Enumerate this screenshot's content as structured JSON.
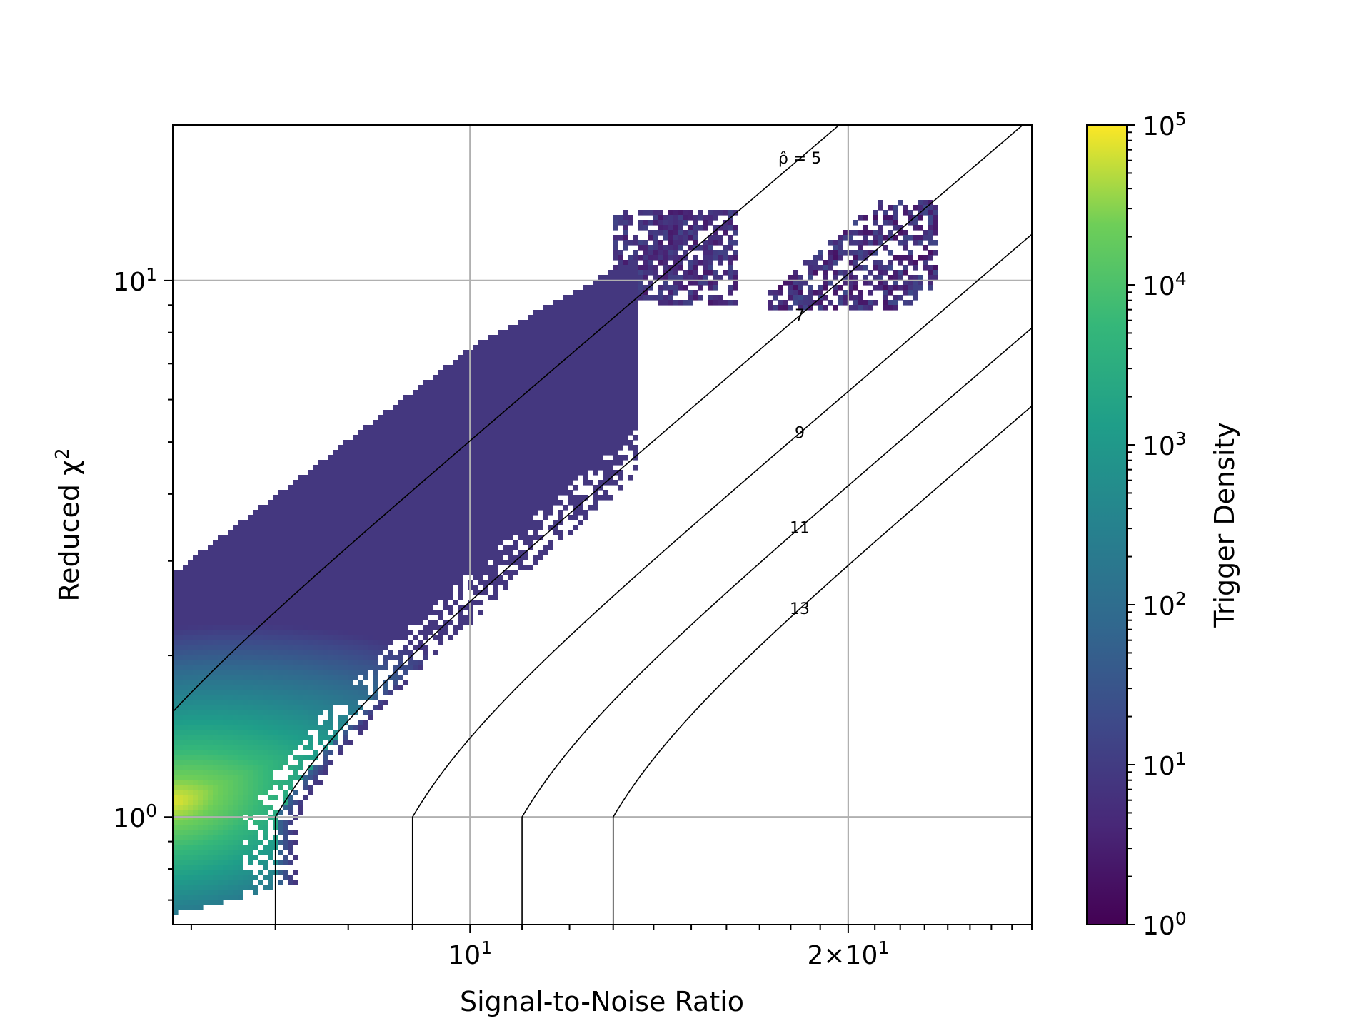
{
  "chart_data": {
    "type": "heatmap",
    "subtype": "hexbin",
    "title": "",
    "xlabel": "Signal-to-Noise Ratio",
    "ylabel": "Reduced χ²",
    "ylabel_base": "Reduced χ",
    "ylabel_sup": "2",
    "x_scale": "log",
    "y_scale": "log",
    "xlim": [
      5.8,
      28
    ],
    "ylim": [
      0.63,
      19.5
    ],
    "grid": true,
    "x_ticks": [
      {
        "value": 10,
        "base": "10",
        "exp": "1"
      },
      {
        "value": 20,
        "base": "2×10",
        "exp": "1"
      }
    ],
    "y_ticks": [
      {
        "value": 1,
        "base": "10",
        "exp": "0"
      },
      {
        "value": 10,
        "base": "10",
        "exp": "1"
      }
    ],
    "colorbar": {
      "label": "Trigger Density",
      "scale": "log",
      "colormap": "viridis",
      "range": [
        1,
        100000
      ],
      "ticks": [
        {
          "value": 1,
          "base": "10",
          "exp": "0"
        },
        {
          "value": 10,
          "base": "10",
          "exp": "1"
        },
        {
          "value": 100,
          "base": "10",
          "exp": "2"
        },
        {
          "value": 1000,
          "base": "10",
          "exp": "3"
        },
        {
          "value": 10000,
          "base": "10",
          "exp": "4"
        },
        {
          "value": 100000,
          "base": "10",
          "exp": "5"
        }
      ]
    },
    "contours": [
      {
        "rho": 5,
        "label": "ρ̂ = 5",
        "label_x": 18.3
      },
      {
        "rho": 7,
        "label": "7",
        "label_x": 18.3
      },
      {
        "rho": 9,
        "label": "9",
        "label_x": 18.3
      },
      {
        "rho": 11,
        "label": "11",
        "label_x": 18.3
      },
      {
        "rho": 13,
        "label": "13",
        "label_x": 18.3
      }
    ],
    "density_regions": [
      {
        "name": "main-band",
        "x_range": [
          5.8,
          13.5
        ],
        "lower_rho_at_x": 7.2,
        "upper_edge": [
          [
            5.8,
            2.85
          ],
          [
            10,
            7.5
          ],
          [
            14,
            11.5
          ]
        ],
        "peak": [
          5.8,
          1.08
        ],
        "peak_density": 100000
      },
      {
        "name": "glitch-arm",
        "x_range": [
          13.5,
          16
        ],
        "y_range": [
          9,
          17
        ]
      },
      {
        "name": "isolated-cluster",
        "x_range": [
          17,
          24
        ],
        "y_range": [
          9,
          14
        ]
      }
    ],
    "colors": {
      "grid": "#b0b0b0",
      "contour": "#000000",
      "axes": "#000000"
    }
  }
}
